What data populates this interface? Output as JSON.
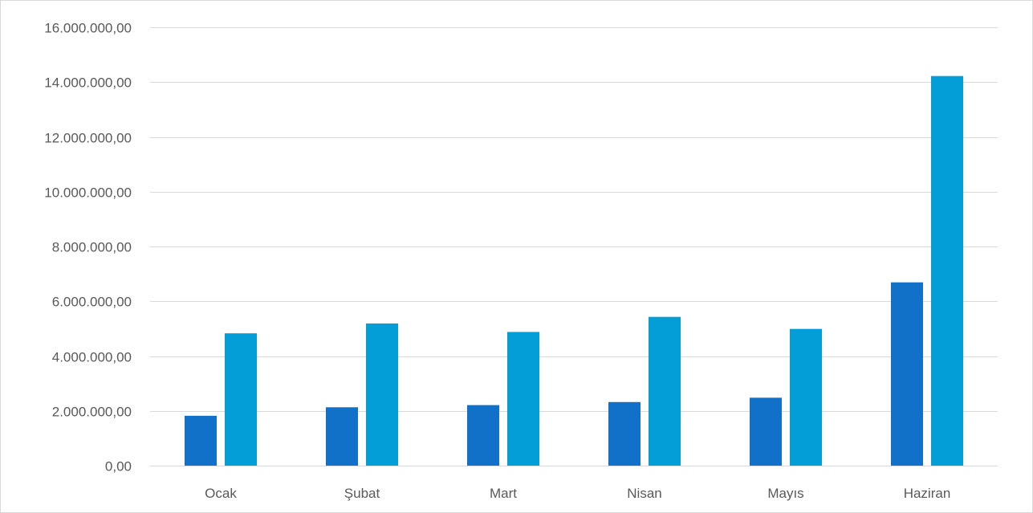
{
  "chart_data": {
    "type": "bar",
    "categories": [
      "Ocak",
      "Şubat",
      "Mart",
      "Nisan",
      "Mayıs",
      "Haziran"
    ],
    "series": [
      {
        "color": "#1170c8",
        "values": [
          1820000,
          2130000,
          2210000,
          2320000,
          2480000,
          6690000
        ]
      },
      {
        "color": "#039dd8",
        "values": [
          4830000,
          5190000,
          4880000,
          5430000,
          4990000,
          14220000
        ]
      }
    ],
    "ylim": [
      0,
      16000000
    ],
    "ytick_values": [
      0,
      2000000,
      4000000,
      6000000,
      8000000,
      10000000,
      12000000,
      14000000,
      16000000
    ],
    "ytick_labels": [
      "0,00",
      "2.000.000,00",
      "4.000.000,00",
      "6.000.000,00",
      "8.000.000,00",
      "10.000.000,00",
      "12.000.000,00",
      "14.000.000,00",
      "16.000.000,00"
    ],
    "grid": true,
    "legend": "none",
    "title": "",
    "xlabel": "",
    "ylabel": ""
  }
}
